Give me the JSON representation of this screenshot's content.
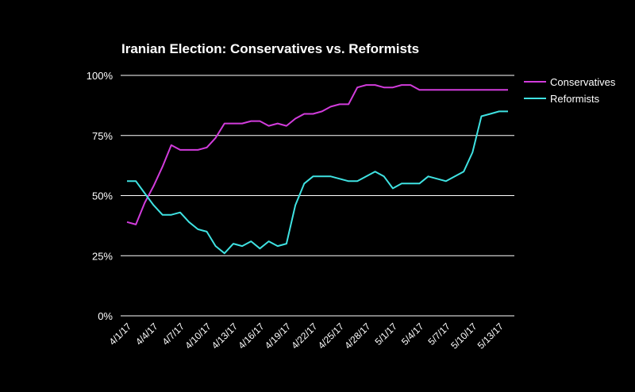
{
  "chart_data": {
    "type": "line",
    "title": "Iranian Election: Conservatives vs. Reformists",
    "xlabel": "",
    "ylabel": "",
    "ylim": [
      0,
      100
    ],
    "y_ticks": [
      "0%",
      "25%",
      "50%",
      "75%",
      "100%"
    ],
    "x_tick_labels": [
      "4/1/17",
      "4/4/17",
      "4/7/17",
      "4/10/17",
      "4/13/17",
      "4/16/17",
      "4/19/17",
      "4/22/17",
      "4/25/17",
      "4/28/17",
      "5/1/17",
      "5/4/17",
      "5/7/17",
      "5/10/17",
      "5/13/17"
    ],
    "x": [
      "4/1/17",
      "4/2/17",
      "4/3/17",
      "4/4/17",
      "4/5/17",
      "4/6/17",
      "4/7/17",
      "4/8/17",
      "4/9/17",
      "4/10/17",
      "4/11/17",
      "4/12/17",
      "4/13/17",
      "4/14/17",
      "4/15/17",
      "4/16/17",
      "4/17/17",
      "4/18/17",
      "4/19/17",
      "4/20/17",
      "4/21/17",
      "4/22/17",
      "4/23/17",
      "4/24/17",
      "4/25/17",
      "4/26/17",
      "4/27/17",
      "4/28/17",
      "4/29/17",
      "4/30/17",
      "5/1/17",
      "5/2/17",
      "5/3/17",
      "5/4/17",
      "5/5/17",
      "5/6/17",
      "5/7/17",
      "5/8/17",
      "5/9/17",
      "5/10/17",
      "5/11/17",
      "5/12/17",
      "5/13/17",
      "5/14/17"
    ],
    "grid": true,
    "legend_position": "top-right",
    "series": [
      {
        "name": "Conservatives",
        "color": "#d23cdc",
        "values": [
          39,
          38,
          47,
          54,
          62,
          71,
          69,
          69,
          69,
          70,
          74,
          80,
          80,
          80,
          81,
          81,
          79,
          80,
          79,
          82,
          84,
          84,
          85,
          87,
          88,
          88,
          95,
          96,
          96,
          95,
          95,
          96,
          96,
          94,
          94,
          94,
          94,
          94,
          94,
          94,
          94,
          94,
          94,
          94
        ]
      },
      {
        "name": "Reformists",
        "color": "#3fe2e2",
        "values": [
          56,
          56,
          51,
          46,
          42,
          42,
          43,
          39,
          36,
          35,
          29,
          26,
          30,
          29,
          31,
          28,
          31,
          29,
          30,
          46,
          55,
          58,
          58,
          58,
          57,
          56,
          56,
          58,
          60,
          58,
          53,
          55,
          55,
          55,
          58,
          57,
          56,
          58,
          60,
          68,
          83,
          84,
          85,
          85
        ]
      }
    ]
  }
}
